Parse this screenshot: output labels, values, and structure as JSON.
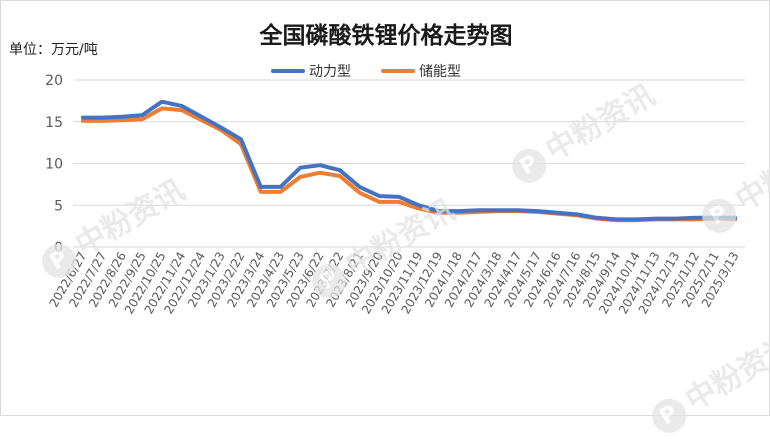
{
  "unit_label": "单位：万元/吨",
  "watermark_text": "中粉资讯",
  "watermark_badge": "P",
  "chart_data": {
    "type": "line",
    "title": "全国磷酸铁锂价格走势图",
    "legend_position": "top",
    "grid": true,
    "ylim": [
      0,
      20
    ],
    "yticks": [
      0,
      5,
      10,
      15,
      20
    ],
    "x": [
      "2022/6/27",
      "2022/7/27",
      "2022/8/26",
      "2022/9/25",
      "2022/10/25",
      "2022/11/24",
      "2022/12/24",
      "2023/1/23",
      "2023/2/22",
      "2023/3/24",
      "2023/4/23",
      "2023/5/23",
      "2023/6/22",
      "2023/7/22",
      "2023/8/21",
      "2023/9/20",
      "2023/10/20",
      "2023/11/19",
      "2023/12/19",
      "2024/1/18",
      "2024/2/17",
      "2024/3/18",
      "2024/4/17",
      "2024/5/17",
      "2024/6/16",
      "2024/7/16",
      "2024/8/15",
      "2024/9/14",
      "2024/10/14",
      "2024/11/13",
      "2024/12/13",
      "2025/1/12",
      "2025/2/11",
      "2025/3/13"
    ],
    "series": [
      {
        "name": "动力型",
        "color": "#4472c4",
        "values": [
          15.5,
          15.5,
          15.6,
          15.8,
          17.4,
          16.9,
          15.6,
          14.3,
          12.9,
          7.2,
          7.2,
          9.5,
          9.8,
          9.2,
          7.2,
          6.1,
          6.0,
          5.0,
          4.3,
          4.3,
          4.4,
          4.4,
          4.4,
          4.3,
          4.1,
          3.9,
          3.5,
          3.3,
          3.3,
          3.4,
          3.4,
          3.5,
          3.5,
          3.5
        ]
      },
      {
        "name": "储能型",
        "color": "#ed7d31",
        "values": [
          15.1,
          15.1,
          15.2,
          15.3,
          16.6,
          16.4,
          15.2,
          14.0,
          12.3,
          6.6,
          6.6,
          8.4,
          8.9,
          8.5,
          6.5,
          5.4,
          5.4,
          4.6,
          4.1,
          4.1,
          4.2,
          4.3,
          4.3,
          4.2,
          4.0,
          3.8,
          3.4,
          3.2,
          3.2,
          3.3,
          3.3,
          3.3,
          3.4,
          3.3
        ]
      }
    ]
  }
}
